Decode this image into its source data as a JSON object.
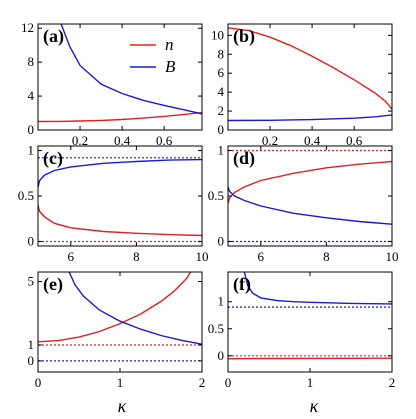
{
  "colors": {
    "n": "#e02020",
    "B": "#1a1ad6",
    "frame": "#000000"
  },
  "xlabel": "κ",
  "legend": {
    "placement": "top-right of panel (a)",
    "n_label": "n",
    "B_label": "B"
  },
  "chart_data": [
    {
      "panel": "(a)",
      "type": "line",
      "grid": false,
      "xlim": [
        0,
        0.78
      ],
      "ylim": [
        0,
        12.5
      ],
      "xticks": [
        0.2,
        0.4,
        0.6
      ],
      "xticklabels": [
        "0.2",
        "0.4",
        "0.6"
      ],
      "yticks": [
        0,
        4,
        8,
        12
      ],
      "yticklabels": [
        "0",
        "4",
        "8",
        "12"
      ],
      "series": [
        {
          "name": "n",
          "color_key": "n",
          "style": "solid",
          "x": [
            0,
            0.1,
            0.2,
            0.3,
            0.4,
            0.5,
            0.6,
            0.7,
            0.78
          ],
          "y": [
            1.0,
            1.02,
            1.06,
            1.13,
            1.24,
            1.4,
            1.6,
            1.85,
            2.05
          ]
        },
        {
          "name": "B",
          "color_key": "B",
          "style": "solid",
          "x": [
            0.11,
            0.15,
            0.2,
            0.3,
            0.4,
            0.5,
            0.6,
            0.7,
            0.78
          ],
          "y": [
            12.5,
            9.9,
            7.6,
            5.4,
            4.3,
            3.5,
            2.9,
            2.35,
            1.9
          ]
        }
      ]
    },
    {
      "panel": "(b)",
      "type": "line",
      "grid": false,
      "xlim": [
        0,
        0.78
      ],
      "ylim": [
        0,
        11.2
      ],
      "xticks": [
        0.2,
        0.4,
        0.6
      ],
      "xticklabels": [
        "0.2",
        "0.4",
        "0.6"
      ],
      "yticks": [
        0,
        2,
        4,
        6,
        8,
        10
      ],
      "yticklabels": [
        "0",
        "2",
        "4",
        "6",
        "8",
        "10"
      ],
      "series": [
        {
          "name": "n",
          "color_key": "n",
          "style": "solid",
          "x": [
            0,
            0.1,
            0.2,
            0.3,
            0.4,
            0.5,
            0.6,
            0.7,
            0.75,
            0.78
          ],
          "y": [
            10.8,
            10.5,
            9.8,
            8.9,
            7.8,
            6.6,
            5.3,
            3.9,
            3.0,
            2.2
          ]
        },
        {
          "name": "B",
          "color_key": "B",
          "style": "solid",
          "x": [
            0,
            0.2,
            0.4,
            0.6,
            0.7,
            0.78
          ],
          "y": [
            1.0,
            1.03,
            1.1,
            1.25,
            1.4,
            1.6
          ]
        }
      ]
    },
    {
      "panel": "(c)",
      "type": "line",
      "grid": false,
      "xlim": [
        5,
        10
      ],
      "ylim": [
        -0.05,
        1.05
      ],
      "xticks": [
        6,
        8,
        10
      ],
      "xticklabels": [
        "6",
        "8",
        "10"
      ],
      "yticks": [
        0,
        0.5,
        1
      ],
      "yticklabels": [
        "0",
        "0.5",
        "1"
      ],
      "series": [
        {
          "name": "n",
          "color_key": "n",
          "style": "solid",
          "x": [
            5.0,
            5.05,
            5.2,
            5.5,
            6,
            7,
            8,
            9,
            10
          ],
          "y": [
            0.4,
            0.33,
            0.27,
            0.2,
            0.15,
            0.11,
            0.09,
            0.075,
            0.065
          ]
        },
        {
          "name": "B",
          "color_key": "B",
          "style": "solid",
          "x": [
            5.0,
            5.05,
            5.2,
            5.5,
            6,
            7,
            8,
            9,
            10
          ],
          "y": [
            0.6,
            0.67,
            0.73,
            0.78,
            0.82,
            0.86,
            0.88,
            0.895,
            0.9
          ]
        },
        {
          "name": "n",
          "color_key": "n",
          "style": "dotted",
          "x": [
            5,
            10
          ],
          "y": [
            0,
            0
          ]
        },
        {
          "name": "B",
          "color_key": "B",
          "style": "dotted",
          "x": [
            5,
            10
          ],
          "y": [
            0.92,
            0.92
          ]
        }
      ]
    },
    {
      "panel": "(d)",
      "type": "line",
      "grid": false,
      "xlim": [
        5,
        10
      ],
      "ylim": [
        -0.05,
        1.05
      ],
      "xticks": [
        6,
        8,
        10
      ],
      "xticklabels": [
        "6",
        "8",
        "10"
      ],
      "yticks": [
        0,
        0.5,
        1
      ],
      "yticklabels": [
        "0",
        "0.5",
        "1"
      ],
      "series": [
        {
          "name": "n",
          "color_key": "n",
          "style": "solid",
          "x": [
            5.0,
            5.05,
            5.2,
            5.5,
            6,
            7,
            8,
            9,
            10
          ],
          "y": [
            0.42,
            0.48,
            0.54,
            0.6,
            0.67,
            0.75,
            0.81,
            0.85,
            0.88
          ]
        },
        {
          "name": "B",
          "color_key": "B",
          "style": "solid",
          "x": [
            5.0,
            5.05,
            5.2,
            5.5,
            6,
            7,
            8,
            9,
            10
          ],
          "y": [
            0.6,
            0.55,
            0.5,
            0.45,
            0.39,
            0.31,
            0.26,
            0.22,
            0.19
          ]
        },
        {
          "name": "n",
          "color_key": "n",
          "style": "dotted",
          "x": [
            5,
            10
          ],
          "y": [
            1,
            1
          ]
        },
        {
          "name": "B",
          "color_key": "B",
          "style": "dotted",
          "x": [
            5,
            10
          ],
          "y": [
            0,
            0
          ]
        }
      ]
    },
    {
      "panel": "(e)",
      "type": "line",
      "grid": false,
      "xlim": [
        0,
        2
      ],
      "ylim": [
        -0.7,
        5.6
      ],
      "xticks": [
        0,
        1,
        2
      ],
      "xticklabels": [
        "0",
        "1",
        "2"
      ],
      "yticks": [
        0,
        1,
        5
      ],
      "yticklabels": [
        "0",
        "1",
        "5"
      ],
      "series": [
        {
          "name": "n",
          "color_key": "n",
          "style": "solid",
          "x": [
            0,
            0.25,
            0.5,
            0.75,
            1.0,
            1.25,
            1.5,
            1.65,
            1.75,
            1.82,
            1.86
          ],
          "y": [
            1.2,
            1.28,
            1.5,
            1.85,
            2.35,
            2.95,
            3.75,
            4.35,
            4.85,
            5.25,
            5.6
          ]
        },
        {
          "name": "B",
          "color_key": "B",
          "style": "solid",
          "x": [
            0.38,
            0.45,
            0.55,
            0.75,
            1.0,
            1.25,
            1.5,
            1.75,
            2.0
          ],
          "y": [
            5.6,
            4.8,
            4.1,
            3.2,
            2.5,
            2.0,
            1.6,
            1.3,
            1.05
          ]
        },
        {
          "name": "n",
          "color_key": "n",
          "style": "dotted",
          "x": [
            0,
            2
          ],
          "y": [
            1,
            1
          ]
        },
        {
          "name": "B",
          "color_key": "B",
          "style": "dotted",
          "x": [
            0,
            2
          ],
          "y": [
            0,
            0
          ]
        }
      ]
    },
    {
      "panel": "(f)",
      "type": "line",
      "grid": false,
      "xlim": [
        0,
        2
      ],
      "ylim": [
        -0.3,
        1.55
      ],
      "xticks": [
        0,
        1,
        2
      ],
      "xticklabels": [
        "0",
        "1",
        "2"
      ],
      "yticks": [
        0,
        0.5,
        1
      ],
      "yticklabels": [
        "0",
        "0.5",
        "1"
      ],
      "series": [
        {
          "name": "n",
          "color_key": "n",
          "style": "solid",
          "x": [
            0,
            0.5,
            1,
            1.5,
            2
          ],
          "y": [
            -0.055,
            -0.05,
            -0.048,
            -0.046,
            -0.045
          ]
        },
        {
          "name": "B",
          "color_key": "B",
          "style": "solid",
          "x": [
            0.2,
            0.24,
            0.3,
            0.4,
            0.6,
            0.8,
            1.0,
            1.5,
            2.0
          ],
          "y": [
            1.55,
            1.3,
            1.16,
            1.07,
            1.02,
            1.0,
            0.99,
            0.97,
            0.96
          ]
        },
        {
          "name": "n",
          "color_key": "n",
          "style": "dotted",
          "x": [
            0,
            2
          ],
          "y": [
            0.0,
            0.0
          ]
        },
        {
          "name": "B",
          "color_key": "B",
          "style": "dotted",
          "x": [
            0,
            2
          ],
          "y": [
            0.9,
            0.9
          ]
        }
      ]
    }
  ]
}
